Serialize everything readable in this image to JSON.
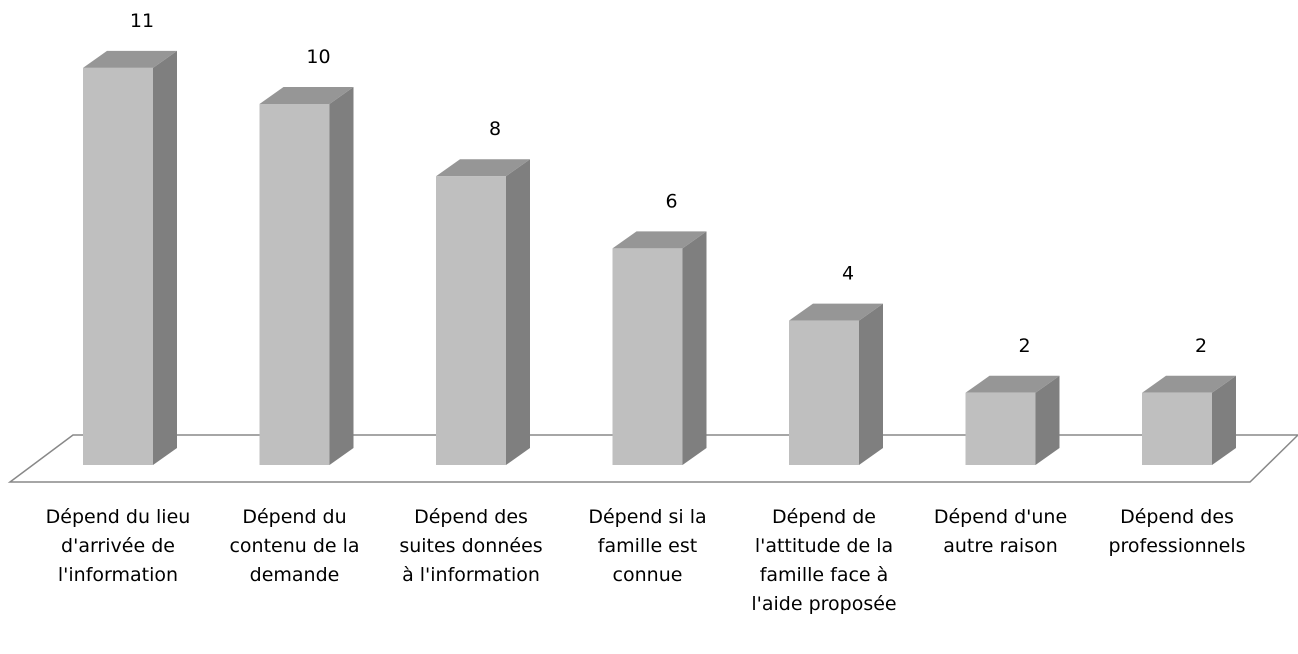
{
  "chart_data": {
    "type": "bar3d",
    "categories": [
      "Dépend du lieu d'arrivée de l'information",
      "Dépend du contenu de la demande",
      "Dépend des suites données à l'information",
      "Dépend si la famille est connue",
      "Dépend de l'attitude de la famille face à l'aide proposée",
      "Dépend d'une autre raison",
      "Dépend des professionnels"
    ],
    "values": [
      11,
      10,
      8,
      6,
      4,
      2,
      2
    ],
    "color": "#bfbfbf"
  }
}
